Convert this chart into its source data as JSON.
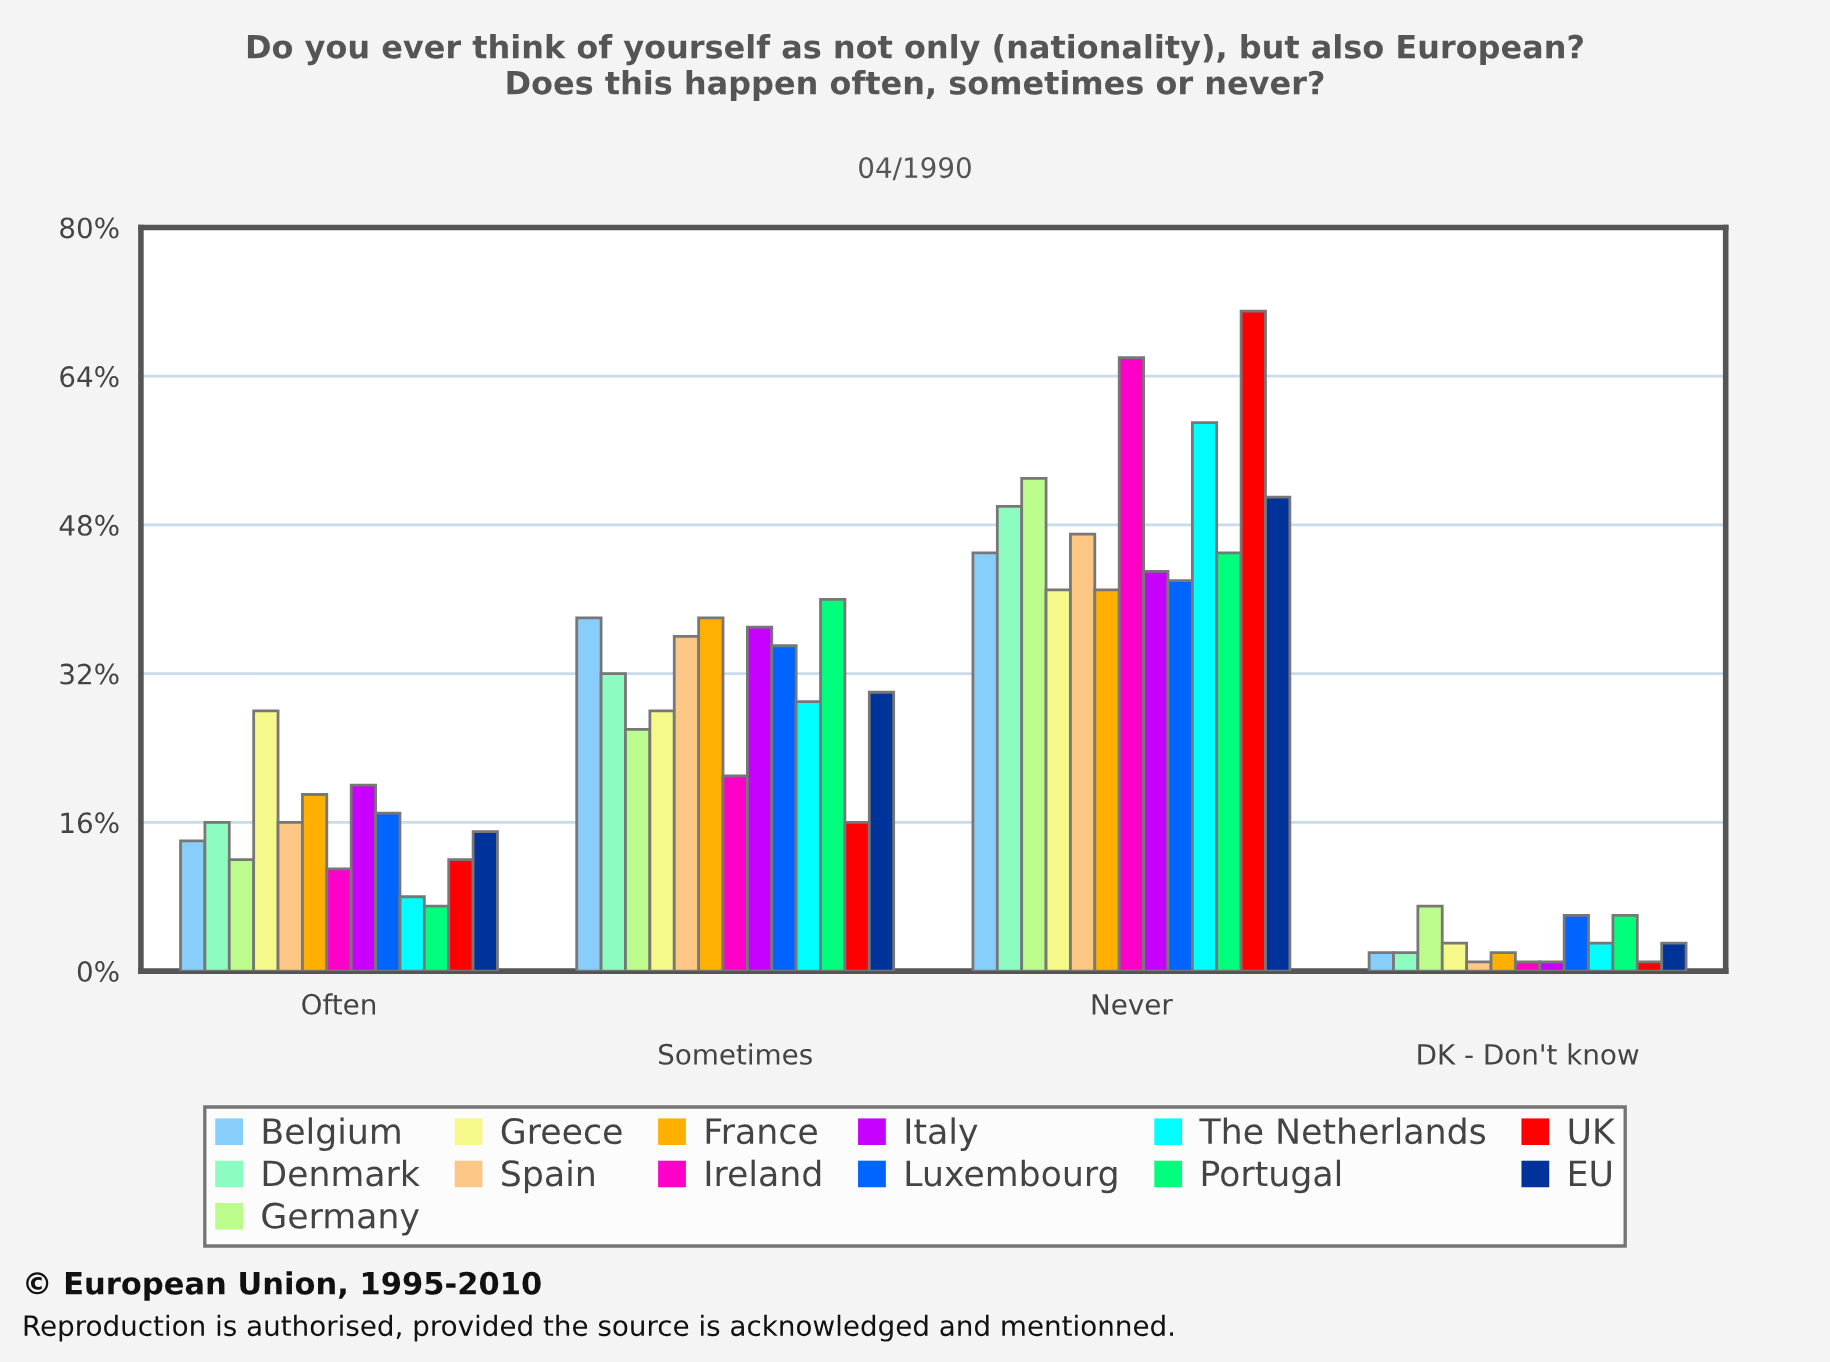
{
  "chart_data": {
    "type": "bar",
    "title": "Do you ever think of yourself as not only (nationality), but also European?\nDoes this happen often, sometimes or never?",
    "subtitle": "04/1990",
    "categories": [
      "Often",
      "Sometimes",
      "Never",
      "DK - Don't know"
    ],
    "series": [
      {
        "name": "Belgium",
        "color": "#87cefa",
        "values": [
          14,
          38,
          45,
          2
        ]
      },
      {
        "name": "Denmark",
        "color": "#8cfcc0",
        "values": [
          16,
          32,
          50,
          2
        ]
      },
      {
        "name": "Germany",
        "color": "#bcfc8c",
        "values": [
          12,
          26,
          53,
          7
        ]
      },
      {
        "name": "Greece",
        "color": "#f5f98a",
        "values": [
          28,
          28,
          41,
          3
        ]
      },
      {
        "name": "Spain",
        "color": "#fdc886",
        "values": [
          16,
          36,
          47,
          1
        ]
      },
      {
        "name": "France",
        "color": "#ffb000",
        "values": [
          19,
          38,
          41,
          2
        ]
      },
      {
        "name": "Ireland",
        "color": "#ff00c8",
        "values": [
          11,
          21,
          66,
          1
        ]
      },
      {
        "name": "Italy",
        "color": "#c800ff",
        "values": [
          20,
          37,
          43,
          1
        ]
      },
      {
        "name": "Luxembourg",
        "color": "#0064ff",
        "values": [
          17,
          35,
          42,
          6
        ]
      },
      {
        "name": "The Netherlands",
        "color": "#00ffff",
        "values": [
          8,
          29,
          59,
          3
        ]
      },
      {
        "name": "Portugal",
        "color": "#00ff7c",
        "values": [
          7,
          40,
          45,
          6
        ]
      },
      {
        "name": "UK",
        "color": "#ff0000",
        "values": [
          12,
          16,
          71,
          1
        ]
      },
      {
        "name": "EU",
        "color": "#003399",
        "values": [
          15,
          30,
          51,
          3
        ]
      }
    ],
    "ylim": [
      0,
      80
    ],
    "yticks": [
      {
        "value": 0,
        "label": "0%"
      },
      {
        "value": 16,
        "label": "16%"
      },
      {
        "value": 32,
        "label": "32%"
      },
      {
        "value": 48,
        "label": "48%"
      },
      {
        "value": 64,
        "label": "64%"
      },
      {
        "value": 80,
        "label": "80%"
      }
    ],
    "grid": "y",
    "legend": "bottom",
    "annotations": [
      "© European Union, 1995-2010",
      "Reproduction is authorised, provided the source is acknowledged and mentionned."
    ]
  }
}
